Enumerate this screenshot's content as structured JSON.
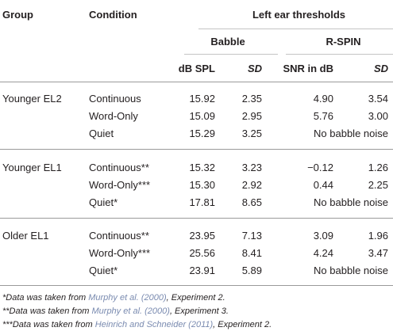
{
  "header": {
    "group": "Group",
    "condition": "Condition",
    "left_ear": "Left ear thresholds",
    "babble": "Babble",
    "rspin": "R-SPIN",
    "db_spl": "dB SPL",
    "sd1": "SD",
    "snr": "SNR in dB",
    "sd2": "SD"
  },
  "groups": [
    {
      "name": "Younger EL2",
      "rows": [
        {
          "condition": "Continuous",
          "db": "15.92",
          "sd": "2.35",
          "snr": "4.90",
          "sd2": "3.54"
        },
        {
          "condition": "Word-Only",
          "db": "15.09",
          "sd": "2.95",
          "snr": "5.76",
          "sd2": "3.00"
        },
        {
          "condition": "Quiet",
          "db": "15.29",
          "sd": "3.25",
          "noise": "No babble noise"
        }
      ]
    },
    {
      "name": "Younger EL1",
      "rows": [
        {
          "condition": "Continuous**",
          "db": "15.32",
          "sd": "3.23",
          "snr": "−0.12",
          "sd2": "1.26"
        },
        {
          "condition": "Word-Only***",
          "db": "15.30",
          "sd": "2.92",
          "snr": "0.44",
          "sd2": "2.25"
        },
        {
          "condition": "Quiet*",
          "db": "17.81",
          "sd": "8.65",
          "noise": "No babble noise"
        }
      ]
    },
    {
      "name": "Older EL1",
      "rows": [
        {
          "condition": "Continuous**",
          "db": "23.95",
          "sd": "7.13",
          "snr": "3.09",
          "sd2": "1.96"
        },
        {
          "condition": "Word-Only***",
          "db": "25.56",
          "sd": "8.41",
          "snr": "4.24",
          "sd2": "3.47"
        },
        {
          "condition": "Quiet*",
          "db": "23.91",
          "sd": "5.89",
          "noise": "No babble noise"
        }
      ]
    }
  ],
  "footnotes": [
    {
      "prefix": "*Data was taken from ",
      "link": "Murphy et al. (2000)",
      "suffix": ", Experiment 2."
    },
    {
      "prefix": "**Data was taken from ",
      "link": "Murphy et al. (2000)",
      "suffix": ", Experiment 3."
    },
    {
      "prefix": "***Data was taken from ",
      "link": "Heinrich and Schneider (2011)",
      "suffix": ", Experiment 2."
    }
  ],
  "colors": {
    "text": "#231f20",
    "rule": "#9a9a9a",
    "link": "#7a8bb0"
  }
}
